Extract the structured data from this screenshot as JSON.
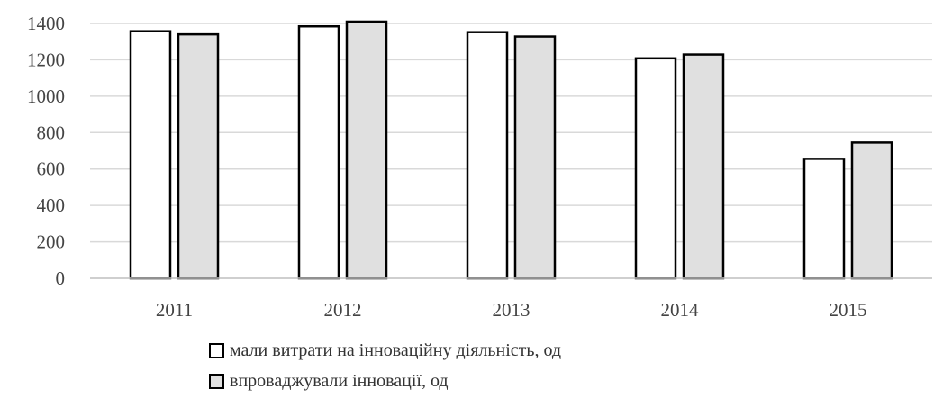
{
  "chart_data": {
    "type": "bar",
    "categories": [
      "2011",
      "2012",
      "2013",
      "2014",
      "2015"
    ],
    "series": [
      {
        "name": "мали витрати на інноваційну діяльність, од",
        "values": [
          1357,
          1384,
          1352,
          1208,
          656
        ],
        "color": "#ffffff"
      },
      {
        "name": "впроваджували інновації, од",
        "values": [
          1340,
          1410,
          1328,
          1229,
          745
        ],
        "color": "#e0e0e0"
      }
    ],
    "ylim": [
      0,
      1400
    ],
    "yticks": [
      0,
      200,
      400,
      600,
      800,
      1000,
      1200,
      1400
    ],
    "grid": true,
    "legend_position": "bottom",
    "bar_stroke": "#000000"
  }
}
